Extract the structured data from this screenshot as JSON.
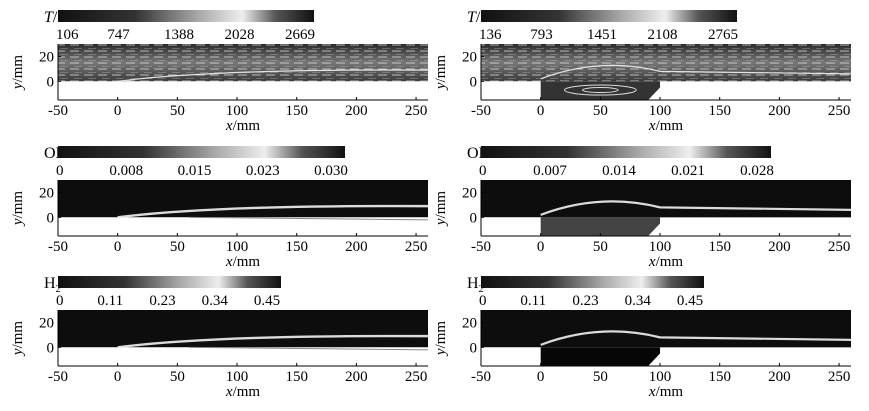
{
  "chart_data": [
    {
      "type": "heatmap",
      "field_label": "T/K",
      "colorbar_ticks": [
        "106",
        "747",
        "1388",
        "2028",
        "2669"
      ],
      "ylabel": "y/mm",
      "xlabel": "x/mm",
      "x_ticks": [
        "-50",
        "0",
        "50",
        "100",
        "150",
        "200",
        "250"
      ],
      "y_ticks": [
        "20",
        "0"
      ],
      "xlim": [
        -50,
        260
      ],
      "ylim": [
        -15,
        30
      ],
      "cavity": false
    },
    {
      "type": "heatmap",
      "field_label": "T/K",
      "colorbar_ticks": [
        "136",
        "793",
        "1451",
        "2108",
        "2765"
      ],
      "ylabel": "y/mm",
      "xlabel": "x/mm",
      "x_ticks": [
        "-50",
        "0",
        "50",
        "100",
        "150",
        "200",
        "250"
      ],
      "y_ticks": [
        "20",
        "0"
      ],
      "xlim": [
        -50,
        260
      ],
      "ylim": [
        -15,
        30
      ],
      "cavity": true
    },
    {
      "type": "heatmap",
      "field_label": "OH",
      "colorbar_ticks": [
        "0",
        "0.008",
        "0.015",
        "0.023",
        "0.030"
      ],
      "ylabel": "y/mm",
      "xlabel": "x/mm",
      "x_ticks": [
        "-50",
        "0",
        "50",
        "100",
        "150",
        "200",
        "250"
      ],
      "y_ticks": [
        "20",
        "0"
      ],
      "xlim": [
        -50,
        260
      ],
      "ylim": [
        -15,
        30
      ],
      "cavity": false
    },
    {
      "type": "heatmap",
      "field_label": "OH",
      "colorbar_ticks": [
        "0",
        "0.007",
        "0.014",
        "0.021",
        "0.028"
      ],
      "ylabel": "y/mm",
      "xlabel": "x/mm",
      "x_ticks": [
        "-50",
        "0",
        "50",
        "100",
        "150",
        "200",
        "250"
      ],
      "y_ticks": [
        "20",
        "0"
      ],
      "xlim": [
        -50,
        260
      ],
      "ylim": [
        -15,
        30
      ],
      "cavity": true
    },
    {
      "type": "heatmap",
      "field_label": "H2O",
      "colorbar_ticks": [
        "0",
        "0.11",
        "0.23",
        "0.34",
        "0.45"
      ],
      "ylabel": "y/mm",
      "xlabel": "x/mm",
      "x_ticks": [
        "-50",
        "0",
        "50",
        "100",
        "150",
        "200",
        "250"
      ],
      "y_ticks": [
        "20",
        "0"
      ],
      "xlim": [
        -50,
        260
      ],
      "ylim": [
        -15,
        30
      ],
      "cavity": false
    },
    {
      "type": "heatmap",
      "field_label": "H2O",
      "colorbar_ticks": [
        "0",
        "0.11",
        "0.23",
        "0.34",
        "0.45"
      ],
      "ylabel": "y/mm",
      "xlabel": "x/mm",
      "x_ticks": [
        "-50",
        "0",
        "50",
        "100",
        "150",
        "200",
        "250"
      ],
      "y_ticks": [
        "20",
        "0"
      ],
      "xlim": [
        -50,
        260
      ],
      "ylim": [
        -15,
        30
      ],
      "cavity": true
    }
  ]
}
